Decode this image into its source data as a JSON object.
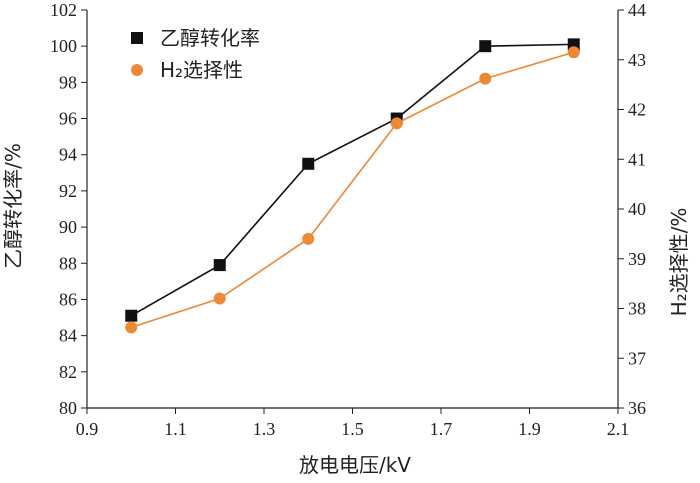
{
  "chart_data": {
    "type": "line",
    "x": [
      1.0,
      1.2,
      1.4,
      1.6,
      1.8,
      2.0
    ],
    "xlabel": "放电电压/kV",
    "xlim": [
      0.9,
      2.1
    ],
    "xticks": [
      "0.9",
      "1.1",
      "1.3",
      "1.5",
      "1.7",
      "1.9",
      "2.1"
    ],
    "ylabel_left": "乙醇转化率/%",
    "ylim_left": [
      80,
      102
    ],
    "yticks_left": [
      "80",
      "82",
      "84",
      "86",
      "88",
      "90",
      "92",
      "94",
      "96",
      "98",
      "100",
      "102"
    ],
    "ylabel_right": "H₂选择性/%",
    "ylim_right": [
      36,
      44
    ],
    "yticks_right": [
      "36",
      "37",
      "38",
      "39",
      "40",
      "41",
      "42",
      "43",
      "44"
    ],
    "grid": false,
    "legend_position": "top-left",
    "series": [
      {
        "name": "乙醇转化率",
        "axis": "left",
        "marker": "square",
        "color": "#111111",
        "values": [
          85.1,
          87.9,
          93.5,
          96.0,
          100.0,
          100.1
        ]
      },
      {
        "name": "H₂选择性",
        "axis": "right",
        "marker": "circle",
        "color": "#ee8833",
        "values": [
          37.62,
          38.2,
          39.4,
          41.72,
          42.62,
          43.15
        ]
      }
    ]
  }
}
